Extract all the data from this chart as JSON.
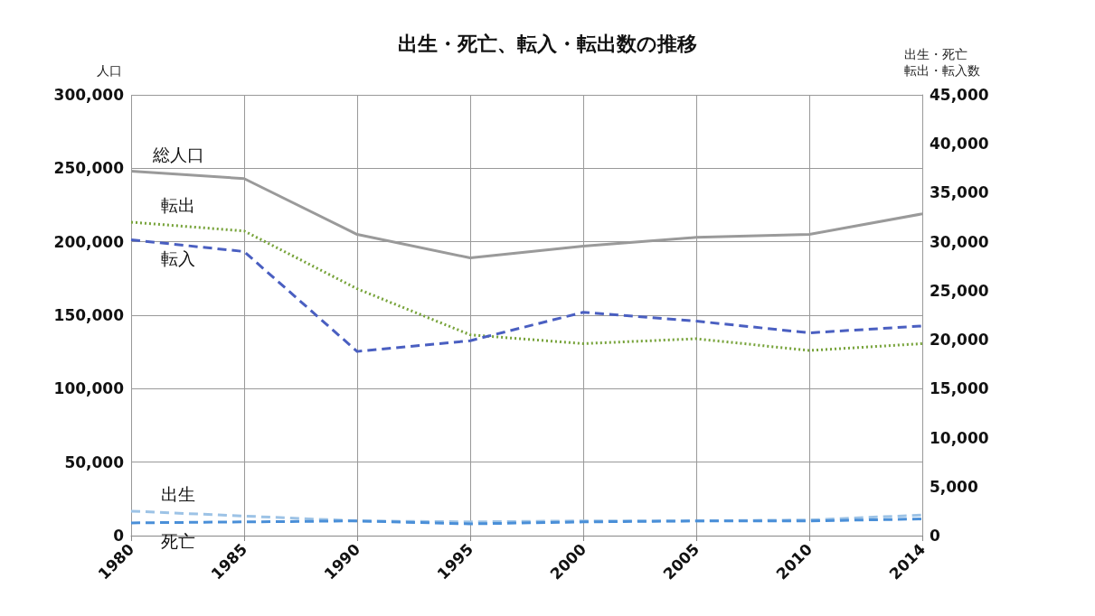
{
  "chart_data": {
    "type": "line",
    "title": "出生・死亡、転入・転出数の推移",
    "ylabel": "人口",
    "y2label": "出生・死亡転出・転入数",
    "categories": [
      "1980",
      "1985",
      "1990",
      "1995",
      "2000",
      "2005",
      "2010",
      "2014"
    ],
    "ylim": [
      0,
      300000
    ],
    "yticks": [
      0,
      {
        "value": 50000,
        "label": "50,000"
      },
      {
        "value": 100000,
        "label": "100,000"
      },
      {
        "value": 150000,
        "label": "150,000"
      },
      {
        "value": 200000,
        "label": "200,000"
      },
      {
        "value": 250000,
        "label": "250,000"
      },
      {
        "value": 300000,
        "label": "300,000"
      }
    ],
    "y2lim": [
      0,
      45000
    ],
    "y2ticks": [
      0,
      {
        "value": 5000,
        "label": "5,000"
      },
      {
        "value": 10000,
        "label": "10,000"
      },
      {
        "value": 15000,
        "label": "15,000"
      },
      {
        "value": 20000,
        "label": "20,000"
      },
      {
        "value": 25000,
        "label": "25,000"
      },
      {
        "value": 30000,
        "label": "30,000"
      },
      {
        "value": 35000,
        "label": "35,000"
      },
      {
        "value": 40000,
        "label": "40,000"
      },
      {
        "value": 45000,
        "label": "45,000"
      }
    ],
    "grid": true,
    "legend": false,
    "marker": "none",
    "series": [
      {
        "name": "総人口",
        "color": "#9a9a9a",
        "line_style": "solid",
        "values": [
          248000,
          243000,
          205000,
          189000,
          197000,
          203000,
          205000,
          219000
        ]
      },
      {
        "name": "転出",
        "color": "#77a33a",
        "line_style": "dotted",
        "axis": "y2",
        "values": [
          32000,
          31100,
          25200,
          20500,
          19600,
          20100,
          18900,
          19600
        ]
      },
      {
        "name": "転入",
        "color": "#4a5fc1",
        "line_style": "dashed",
        "axis": "y2",
        "values": [
          30200,
          29000,
          18800,
          19900,
          22800,
          21900,
          20700,
          21400
        ]
      },
      {
        "name": "出生",
        "color": "#9dc3e6",
        "line_style": "dashed",
        "axis": "y2",
        "values": [
          2500,
          2000,
          1500,
          1400,
          1500,
          1500,
          1600,
          2100
        ]
      },
      {
        "name": "死亡",
        "color": "#4a8fd8",
        "line_style": "dashed",
        "axis": "y2",
        "values": [
          1300,
          1400,
          1500,
          1200,
          1400,
          1500,
          1500,
          1700
        ]
      }
    ]
  }
}
